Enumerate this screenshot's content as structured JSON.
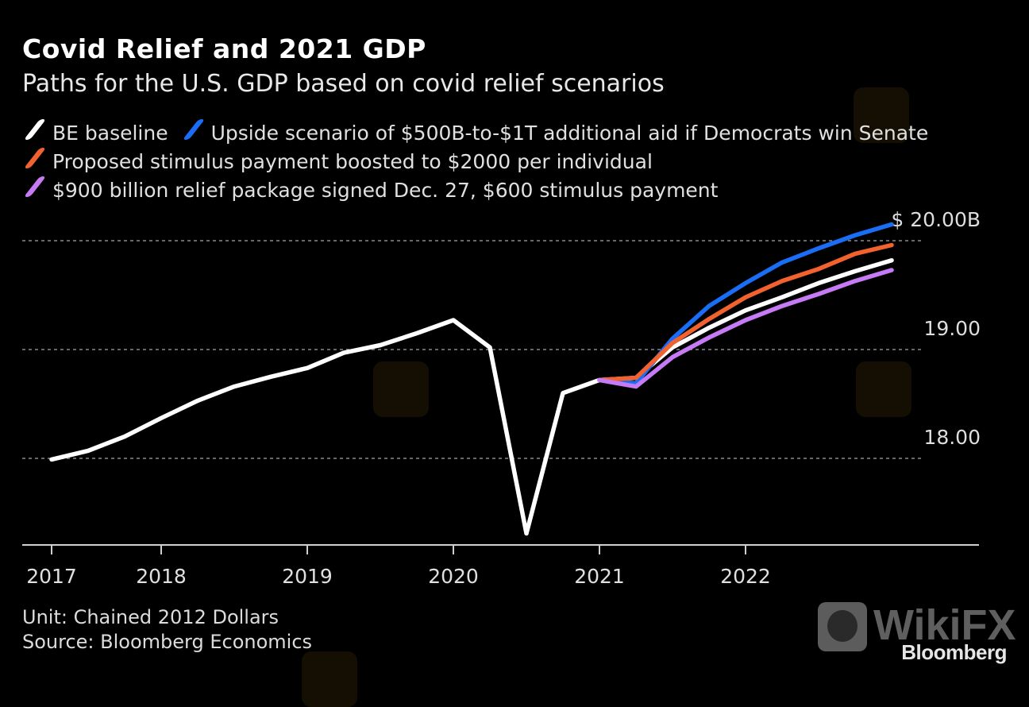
{
  "header": {
    "title": "Covid Relief and 2021 GDP",
    "subtitle": "Paths for the U.S. GDP based on covid relief scenarios"
  },
  "legend": [
    {
      "label": "BE baseline",
      "color": "#ffffff"
    },
    {
      "label": "Upside scenario of $500B-to-$1T additional aid if Democrats win Senate",
      "color": "#1a6ef5"
    },
    {
      "label": "Proposed stimulus payment boosted to $2000 per individual",
      "color": "#f2622e"
    },
    {
      "label": "$900 billion relief package signed Dec. 27, $600 stimulus payment",
      "color": "#c77af5"
    }
  ],
  "footer": {
    "unit": "Unit: Chained 2012 Dollars",
    "source": "Source: Bloomberg Economics",
    "brand": "Bloomberg",
    "watermark": "WikiFX"
  },
  "chart_data": {
    "type": "line",
    "title": "Covid Relief and 2021 GDP",
    "subtitle": "Paths for the U.S. GDP based on covid relief scenarios",
    "xlabel": "",
    "ylabel": "Unit: Chained 2012 Dollars",
    "y_unit_prefix": "$",
    "y_unit_suffix": "B",
    "ylim": [
      17.2,
      20.3
    ],
    "y_ticks": [
      18.0,
      19.0,
      20.0
    ],
    "y_tick_labels": [
      "18.00",
      "19.00",
      "$ 20.00B"
    ],
    "grid": "horizontal-dotted",
    "y_axis_side": "right",
    "x_ticks": [
      2017.25,
      2018.0,
      2019.0,
      2020.0,
      2021.0,
      2022.0
    ],
    "x_tick_labels": [
      "2017",
      "2018",
      "2019",
      "2020",
      "2021",
      "2022"
    ],
    "xlim": [
      2017.05,
      2023.05
    ],
    "series": [
      {
        "name": "BE baseline",
        "color": "#ffffff",
        "x": [
          2017.25,
          2017.5,
          2017.75,
          2018.0,
          2018.25,
          2018.5,
          2018.75,
          2019.0,
          2019.25,
          2019.5,
          2019.75,
          2020.0,
          2020.25,
          2020.5,
          2020.75,
          2021.0,
          2021.25,
          2021.5,
          2021.75,
          2022.0,
          2022.25,
          2022.5,
          2022.75,
          2023.0
        ],
        "values": [
          17.99,
          18.07,
          18.2,
          18.37,
          18.53,
          18.66,
          18.75,
          18.83,
          18.97,
          19.04,
          19.15,
          19.27,
          19.02,
          17.31,
          18.6,
          18.72,
          18.74,
          19.02,
          19.2,
          19.36,
          19.48,
          19.61,
          19.72,
          19.82
        ]
      },
      {
        "name": "Upside scenario of $500B-to-$1T additional aid if Democrats win Senate",
        "color": "#1a6ef5",
        "x": [
          2021.0,
          2021.25,
          2021.5,
          2021.75,
          2022.0,
          2022.25,
          2022.5,
          2022.75,
          2023.0
        ],
        "values": [
          18.72,
          18.69,
          19.1,
          19.4,
          19.61,
          19.8,
          19.93,
          20.05,
          20.15
        ]
      },
      {
        "name": "Proposed stimulus payment boosted to $2000 per individual",
        "color": "#f2622e",
        "x": [
          2021.0,
          2021.25,
          2021.5,
          2021.75,
          2022.0,
          2022.25,
          2022.5,
          2022.75,
          2023.0
        ],
        "values": [
          18.72,
          18.74,
          19.06,
          19.28,
          19.48,
          19.63,
          19.74,
          19.88,
          19.96
        ]
      },
      {
        "name": "$900 billion relief package signed Dec. 27, $600 stimulus payment",
        "color": "#c77af5",
        "x": [
          2021.0,
          2021.25,
          2021.5,
          2021.75,
          2022.0,
          2022.25,
          2022.5,
          2022.75,
          2023.0
        ],
        "values": [
          18.72,
          18.66,
          18.93,
          19.11,
          19.27,
          19.4,
          19.51,
          19.63,
          19.73
        ]
      }
    ]
  }
}
